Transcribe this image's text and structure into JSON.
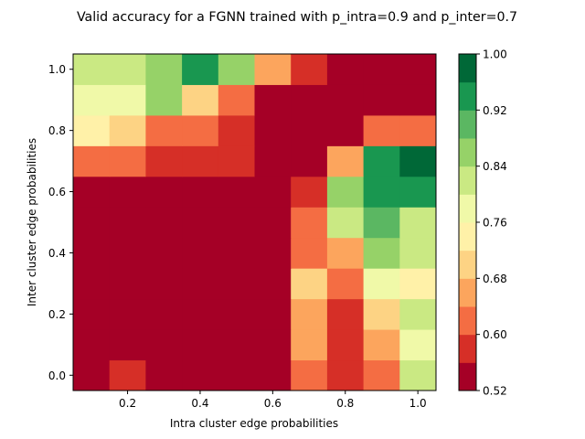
{
  "chart_data": {
    "type": "heatmap",
    "title": "Valid accuracy for a FGNN trained with p_intra=0.9 and p_inter=0.7",
    "xlabel": "Intra cluster edge probabilities",
    "ylabel": "Inter cluster edge probabilities",
    "x_centers": [
      0.1,
      0.2,
      0.3,
      0.4,
      0.5,
      0.6,
      0.7,
      0.8,
      0.9,
      1.0
    ],
    "y_centers": [
      0.0,
      0.1,
      0.2,
      0.3,
      0.4,
      0.5,
      0.6,
      0.7,
      0.8,
      0.9,
      1.0
    ],
    "xlim": [
      0.05,
      1.05
    ],
    "ylim": [
      -0.05,
      1.05
    ],
    "x_ticks": [
      0.2,
      0.4,
      0.6,
      0.8,
      1.0
    ],
    "x_tick_labels": [
      "0.2",
      "0.4",
      "0.6",
      "0.8",
      "1.0"
    ],
    "y_ticks": [
      0.0,
      0.2,
      0.4,
      0.6,
      0.8,
      1.0
    ],
    "y_tick_labels": [
      "0.0",
      "0.2",
      "0.4",
      "0.6",
      "0.8",
      "1.0"
    ],
    "values": [
      [
        0.54,
        0.58,
        0.54,
        0.54,
        0.54,
        0.54,
        0.62,
        0.58,
        0.62,
        0.82
      ],
      [
        0.54,
        0.54,
        0.54,
        0.54,
        0.54,
        0.54,
        0.66,
        0.58,
        0.66,
        0.78
      ],
      [
        0.54,
        0.54,
        0.54,
        0.54,
        0.54,
        0.54,
        0.66,
        0.58,
        0.7,
        0.82
      ],
      [
        0.54,
        0.54,
        0.54,
        0.54,
        0.54,
        0.54,
        0.7,
        0.62,
        0.78,
        0.74
      ],
      [
        0.54,
        0.54,
        0.54,
        0.54,
        0.54,
        0.54,
        0.62,
        0.66,
        0.86,
        0.82
      ],
      [
        0.54,
        0.54,
        0.54,
        0.54,
        0.54,
        0.54,
        0.62,
        0.82,
        0.9,
        0.82
      ],
      [
        0.54,
        0.54,
        0.54,
        0.54,
        0.54,
        0.54,
        0.58,
        0.86,
        0.94,
        0.94
      ],
      [
        0.62,
        0.62,
        0.58,
        0.58,
        0.58,
        0.54,
        0.54,
        0.66,
        0.94,
        0.98
      ],
      [
        0.74,
        0.7,
        0.62,
        0.62,
        0.58,
        0.54,
        0.54,
        0.54,
        0.62,
        0.62
      ],
      [
        0.78,
        0.78,
        0.86,
        0.7,
        0.62,
        0.54,
        0.54,
        0.54,
        0.54,
        0.54
      ],
      [
        0.82,
        0.82,
        0.86,
        0.94,
        0.86,
        0.66,
        0.58,
        0.54,
        0.54,
        0.54
      ]
    ],
    "colorbar": {
      "colormap": "RdYlGn (discrete, 12 levels)",
      "range": [
        0.52,
        1.0
      ],
      "level_step": 0.04,
      "ticks": [
        0.52,
        0.6,
        0.68,
        0.76,
        0.84,
        0.92,
        1.0
      ],
      "tick_labels": [
        "0.52",
        "0.60",
        "0.68",
        "0.76",
        "0.84",
        "0.92",
        "1.00"
      ],
      "colors": [
        "#a50026",
        "#d62f27",
        "#f46d43",
        "#fca55d",
        "#fdd384",
        "#fff1a8",
        "#f0f9a8",
        "#cae983",
        "#96d268",
        "#5bb762",
        "#199750",
        "#006837"
      ]
    }
  }
}
